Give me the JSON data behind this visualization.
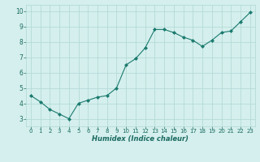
{
  "x": [
    0,
    1,
    2,
    3,
    4,
    5,
    6,
    7,
    8,
    9,
    10,
    11,
    12,
    13,
    14,
    15,
    16,
    17,
    18,
    19,
    20,
    21,
    22,
    23
  ],
  "y": [
    4.5,
    4.1,
    3.6,
    3.3,
    3.0,
    4.0,
    4.2,
    4.4,
    4.5,
    5.0,
    6.5,
    6.9,
    7.6,
    8.8,
    8.8,
    8.6,
    8.3,
    8.1,
    7.7,
    8.1,
    8.6,
    8.7,
    9.3,
    9.9
  ],
  "xlabel": "Humidex (Indice chaleur)",
  "ylim": [
    2.5,
    10.4
  ],
  "xlim": [
    -0.5,
    23.5
  ],
  "yticks": [
    3,
    4,
    5,
    6,
    7,
    8,
    9,
    10
  ],
  "xticks": [
    0,
    1,
    2,
    3,
    4,
    5,
    6,
    7,
    8,
    9,
    10,
    11,
    12,
    13,
    14,
    15,
    16,
    17,
    18,
    19,
    20,
    21,
    22,
    23
  ],
  "line_color": "#1a7a6e",
  "marker_color": "#1a7a6e",
  "bg_color": "#d4efed",
  "grid_color": "#b0d8d4",
  "label_color": "#1a6a60",
  "tick_fontsize": 5.0,
  "xlabel_fontsize": 6.0
}
